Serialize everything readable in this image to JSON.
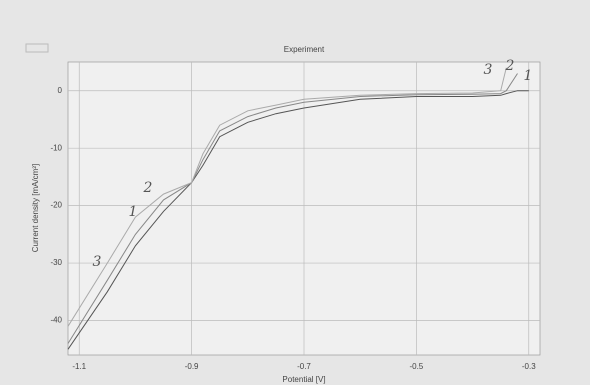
{
  "chart_data": {
    "type": "line",
    "title": "Experiment",
    "x_label": "Potential [V]",
    "y_label": "Current density [mA/cm²]",
    "x": [
      -1.12,
      -1.05,
      -1.0,
      -0.95,
      -0.9,
      -0.88,
      -0.85,
      -0.8,
      -0.75,
      -0.7,
      -0.6,
      -0.5,
      -0.4,
      -0.35,
      -0.34,
      -0.32,
      -0.3
    ],
    "series": [
      {
        "name": "1",
        "color": "#555555",
        "values": [
          -45,
          -35,
          -27,
          -21,
          -16,
          -13,
          -8,
          -5.5,
          -4,
          -3,
          -1.5,
          -1,
          -1,
          -0.8,
          -0.5,
          0,
          0
        ]
      },
      {
        "name": "2",
        "color": "#888888",
        "values": [
          -44,
          -33,
          -25,
          -19,
          -16,
          -12,
          -7,
          -4.5,
          -3,
          -2,
          -1,
          -0.7,
          -0.6,
          -0.5,
          0,
          3,
          null
        ]
      },
      {
        "name": "3",
        "color": "#aaaaaa",
        "values": [
          -41,
          -30,
          -22,
          -18,
          -16,
          -11,
          -6,
          -3.5,
          -2.5,
          -1.5,
          -0.8,
          -0.5,
          -0.4,
          0,
          4,
          null,
          null
        ]
      }
    ],
    "annotations": [
      "1",
      "2",
      "3",
      "3",
      "2",
      "1"
    ],
    "xlim": [
      -1.12,
      -0.28
    ],
    "ylim": [
      -46,
      5
    ],
    "xticks": [
      -1.1,
      -0.9,
      -0.7,
      -0.5,
      -0.3
    ],
    "yticks": [
      0,
      -10,
      -20,
      -30,
      -40
    ],
    "grid": true
  }
}
